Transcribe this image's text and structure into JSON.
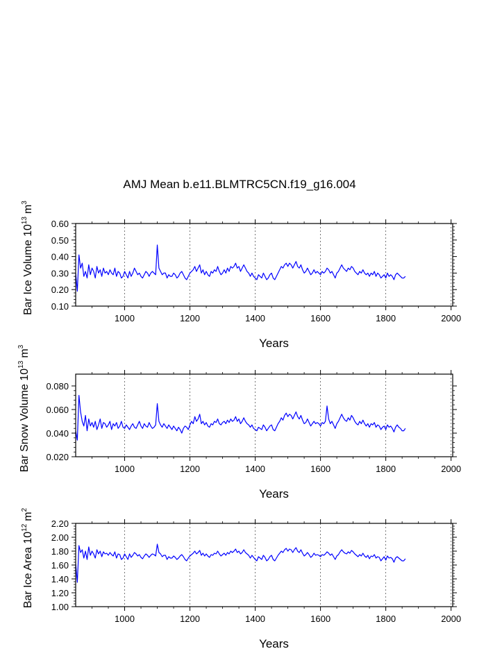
{
  "title": "AMJ Mean b.e11.BLMTRC5CN.f19_g16.004",
  "colors": {
    "line": "#0000ff",
    "axis": "#000000",
    "grid": "#555555"
  },
  "chart_data": [
    {
      "type": "line",
      "ylabel_main": "Bar Ice Volume 10",
      "ylabel_exp": "13",
      "ylabel_unit": "m",
      "ylabel_unit_exp": "3",
      "xlabel": "Years",
      "xlim": [
        850,
        2005
      ],
      "ylim": [
        0.1,
        0.6
      ],
      "xticks": [
        1000,
        1200,
        1400,
        1600,
        1800,
        2000
      ],
      "xtick_labels": [
        "1000",
        "1200",
        "1400",
        "1600",
        "1800",
        "2000"
      ],
      "yticks": [
        0.1,
        0.2,
        0.3,
        0.4,
        0.5,
        0.6
      ],
      "ytick_labels": [
        "0.10",
        "0.20",
        "0.30",
        "0.40",
        "0.50",
        "0.60"
      ],
      "series": [
        {
          "name": "Bar Ice Volume",
          "x_start": 850,
          "x_step": 5,
          "values": [
            0.3,
            0.19,
            0.41,
            0.33,
            0.36,
            0.28,
            0.31,
            0.27,
            0.35,
            0.29,
            0.33,
            0.31,
            0.27,
            0.34,
            0.3,
            0.32,
            0.28,
            0.33,
            0.3,
            0.31,
            0.29,
            0.32,
            0.3,
            0.29,
            0.33,
            0.28,
            0.31,
            0.3,
            0.27,
            0.28,
            0.31,
            0.29,
            0.27,
            0.31,
            0.28,
            0.3,
            0.33,
            0.31,
            0.29,
            0.3,
            0.28,
            0.27,
            0.29,
            0.31,
            0.3,
            0.28,
            0.3,
            0.31,
            0.3,
            0.29,
            0.47,
            0.33,
            0.31,
            0.29,
            0.3,
            0.3,
            0.27,
            0.29,
            0.28,
            0.28,
            0.3,
            0.29,
            0.27,
            0.28,
            0.3,
            0.31,
            0.29,
            0.27,
            0.26,
            0.28,
            0.3,
            0.31,
            0.32,
            0.34,
            0.31,
            0.33,
            0.35,
            0.3,
            0.32,
            0.29,
            0.31,
            0.29,
            0.28,
            0.31,
            0.3,
            0.32,
            0.31,
            0.34,
            0.31,
            0.29,
            0.3,
            0.32,
            0.3,
            0.33,
            0.31,
            0.34,
            0.33,
            0.34,
            0.36,
            0.33,
            0.34,
            0.31,
            0.33,
            0.35,
            0.33,
            0.31,
            0.3,
            0.28,
            0.3,
            0.28,
            0.27,
            0.26,
            0.29,
            0.28,
            0.27,
            0.3,
            0.28,
            0.26,
            0.27,
            0.29,
            0.3,
            0.27,
            0.26,
            0.28,
            0.3,
            0.32,
            0.34,
            0.33,
            0.35,
            0.36,
            0.34,
            0.36,
            0.35,
            0.33,
            0.35,
            0.37,
            0.34,
            0.33,
            0.35,
            0.32,
            0.3,
            0.31,
            0.33,
            0.31,
            0.29,
            0.3,
            0.32,
            0.3,
            0.31,
            0.3,
            0.29,
            0.31,
            0.3,
            0.31,
            0.33,
            0.32,
            0.3,
            0.31,
            0.29,
            0.27,
            0.3,
            0.31,
            0.33,
            0.35,
            0.33,
            0.32,
            0.31,
            0.33,
            0.32,
            0.34,
            0.33,
            0.31,
            0.3,
            0.29,
            0.31,
            0.3,
            0.32,
            0.3,
            0.29,
            0.3,
            0.28,
            0.3,
            0.29,
            0.31,
            0.28,
            0.3,
            0.29,
            0.27,
            0.28,
            0.29,
            0.27,
            0.3,
            0.28,
            0.29,
            0.28,
            0.26,
            0.29,
            0.3,
            0.29,
            0.28,
            0.27,
            0.27,
            0.28
          ]
        }
      ]
    },
    {
      "type": "line",
      "ylabel_main": "Bar Snow Volume 10",
      "ylabel_exp": "13",
      "ylabel_unit": "m",
      "ylabel_unit_exp": "3",
      "xlabel": "Years",
      "xlim": [
        850,
        2005
      ],
      "ylim": [
        0.02,
        0.09
      ],
      "xticks": [
        1000,
        1200,
        1400,
        1600,
        1800,
        2000
      ],
      "xtick_labels": [
        "1000",
        "1200",
        "1400",
        "1600",
        "1800",
        "2000"
      ],
      "yticks": [
        0.02,
        0.04,
        0.06,
        0.08
      ],
      "ytick_labels": [
        "0.020",
        "0.040",
        "0.060",
        "0.080"
      ],
      "series": [
        {
          "name": "Bar Snow Volume",
          "x_start": 850,
          "x_step": 5,
          "values": [
            0.042,
            0.034,
            0.072,
            0.058,
            0.05,
            0.046,
            0.055,
            0.042,
            0.052,
            0.046,
            0.049,
            0.045,
            0.05,
            0.043,
            0.047,
            0.052,
            0.044,
            0.049,
            0.048,
            0.045,
            0.047,
            0.05,
            0.043,
            0.048,
            0.046,
            0.049,
            0.044,
            0.046,
            0.05,
            0.045,
            0.044,
            0.047,
            0.045,
            0.043,
            0.046,
            0.048,
            0.045,
            0.044,
            0.047,
            0.05,
            0.046,
            0.044,
            0.048,
            0.046,
            0.045,
            0.049,
            0.046,
            0.044,
            0.045,
            0.047,
            0.065,
            0.05,
            0.047,
            0.045,
            0.048,
            0.046,
            0.044,
            0.047,
            0.045,
            0.043,
            0.046,
            0.044,
            0.042,
            0.045,
            0.043,
            0.04,
            0.044,
            0.046,
            0.045,
            0.043,
            0.047,
            0.05,
            0.048,
            0.054,
            0.05,
            0.052,
            0.056,
            0.048,
            0.05,
            0.047,
            0.049,
            0.046,
            0.045,
            0.048,
            0.047,
            0.05,
            0.049,
            0.052,
            0.048,
            0.047,
            0.049,
            0.05,
            0.048,
            0.051,
            0.049,
            0.052,
            0.05,
            0.051,
            0.054,
            0.05,
            0.052,
            0.048,
            0.05,
            0.053,
            0.05,
            0.048,
            0.047,
            0.045,
            0.047,
            0.044,
            0.043,
            0.042,
            0.045,
            0.044,
            0.043,
            0.047,
            0.045,
            0.042,
            0.044,
            0.046,
            0.047,
            0.043,
            0.042,
            0.045,
            0.048,
            0.05,
            0.053,
            0.051,
            0.055,
            0.057,
            0.054,
            0.056,
            0.055,
            0.052,
            0.055,
            0.058,
            0.054,
            0.052,
            0.055,
            0.051,
            0.048,
            0.049,
            0.052,
            0.049,
            0.046,
            0.048,
            0.05,
            0.048,
            0.049,
            0.048,
            0.046,
            0.049,
            0.048,
            0.05,
            0.063,
            0.052,
            0.048,
            0.05,
            0.047,
            0.044,
            0.048,
            0.05,
            0.053,
            0.056,
            0.053,
            0.051,
            0.05,
            0.053,
            0.051,
            0.055,
            0.053,
            0.05,
            0.048,
            0.047,
            0.05,
            0.048,
            0.051,
            0.048,
            0.046,
            0.048,
            0.045,
            0.048,
            0.047,
            0.049,
            0.045,
            0.047,
            0.046,
            0.043,
            0.045,
            0.046,
            0.043,
            0.047,
            0.045,
            0.046,
            0.044,
            0.041,
            0.045,
            0.047,
            0.045,
            0.044,
            0.042,
            0.042,
            0.044
          ]
        }
      ]
    },
    {
      "type": "line",
      "ylabel_main": "Bar Ice Area 10",
      "ylabel_exp": "12",
      "ylabel_unit": "m",
      "ylabel_unit_exp": "2",
      "xlabel": "Years",
      "xlim": [
        850,
        2005
      ],
      "ylim": [
        1.0,
        2.2
      ],
      "xticks": [
        1000,
        1200,
        1400,
        1600,
        1800,
        2000
      ],
      "xtick_labels": [
        "1000",
        "1200",
        "1400",
        "1600",
        "1800",
        "2000"
      ],
      "yticks": [
        1.0,
        1.2,
        1.4,
        1.6,
        1.8,
        2.0,
        2.2
      ],
      "ytick_labels": [
        "1.00",
        "1.20",
        "1.40",
        "1.60",
        "1.80",
        "2.00",
        "2.20"
      ],
      "series": [
        {
          "name": "Bar Ice Area",
          "x_start": 850,
          "x_step": 5,
          "values": [
            1.62,
            1.35,
            1.88,
            1.78,
            1.82,
            1.7,
            1.8,
            1.68,
            1.86,
            1.74,
            1.8,
            1.76,
            1.7,
            1.82,
            1.76,
            1.8,
            1.72,
            1.79,
            1.76,
            1.77,
            1.74,
            1.78,
            1.75,
            1.73,
            1.79,
            1.7,
            1.76,
            1.75,
            1.68,
            1.7,
            1.76,
            1.72,
            1.68,
            1.76,
            1.71,
            1.74,
            1.78,
            1.76,
            1.73,
            1.75,
            1.71,
            1.69,
            1.73,
            1.76,
            1.74,
            1.71,
            1.74,
            1.76,
            1.75,
            1.73,
            1.9,
            1.78,
            1.76,
            1.72,
            1.74,
            1.74,
            1.68,
            1.72,
            1.7,
            1.7,
            1.73,
            1.71,
            1.68,
            1.7,
            1.73,
            1.75,
            1.72,
            1.68,
            1.66,
            1.7,
            1.73,
            1.75,
            1.77,
            1.8,
            1.76,
            1.78,
            1.81,
            1.74,
            1.77,
            1.73,
            1.76,
            1.73,
            1.71,
            1.75,
            1.74,
            1.77,
            1.76,
            1.8,
            1.76,
            1.73,
            1.75,
            1.77,
            1.74,
            1.78,
            1.76,
            1.8,
            1.78,
            1.8,
            1.83,
            1.78,
            1.8,
            1.76,
            1.78,
            1.82,
            1.78,
            1.76,
            1.74,
            1.7,
            1.74,
            1.71,
            1.68,
            1.66,
            1.72,
            1.7,
            1.68,
            1.74,
            1.71,
            1.66,
            1.68,
            1.72,
            1.74,
            1.68,
            1.66,
            1.7,
            1.74,
            1.77,
            1.8,
            1.78,
            1.82,
            1.84,
            1.8,
            1.83,
            1.82,
            1.78,
            1.82,
            1.85,
            1.8,
            1.78,
            1.82,
            1.77,
            1.73,
            1.75,
            1.78,
            1.75,
            1.71,
            1.73,
            1.77,
            1.74,
            1.75,
            1.74,
            1.72,
            1.75,
            1.74,
            1.76,
            1.79,
            1.77,
            1.74,
            1.76,
            1.72,
            1.68,
            1.73,
            1.75,
            1.79,
            1.82,
            1.79,
            1.77,
            1.76,
            1.79,
            1.77,
            1.81,
            1.79,
            1.76,
            1.74,
            1.72,
            1.75,
            1.73,
            1.77,
            1.73,
            1.71,
            1.74,
            1.69,
            1.73,
            1.72,
            1.75,
            1.7,
            1.72,
            1.71,
            1.66,
            1.69,
            1.72,
            1.67,
            1.73,
            1.7,
            1.71,
            1.69,
            1.64,
            1.7,
            1.72,
            1.7,
            1.68,
            1.66,
            1.66,
            1.69
          ]
        }
      ]
    }
  ]
}
